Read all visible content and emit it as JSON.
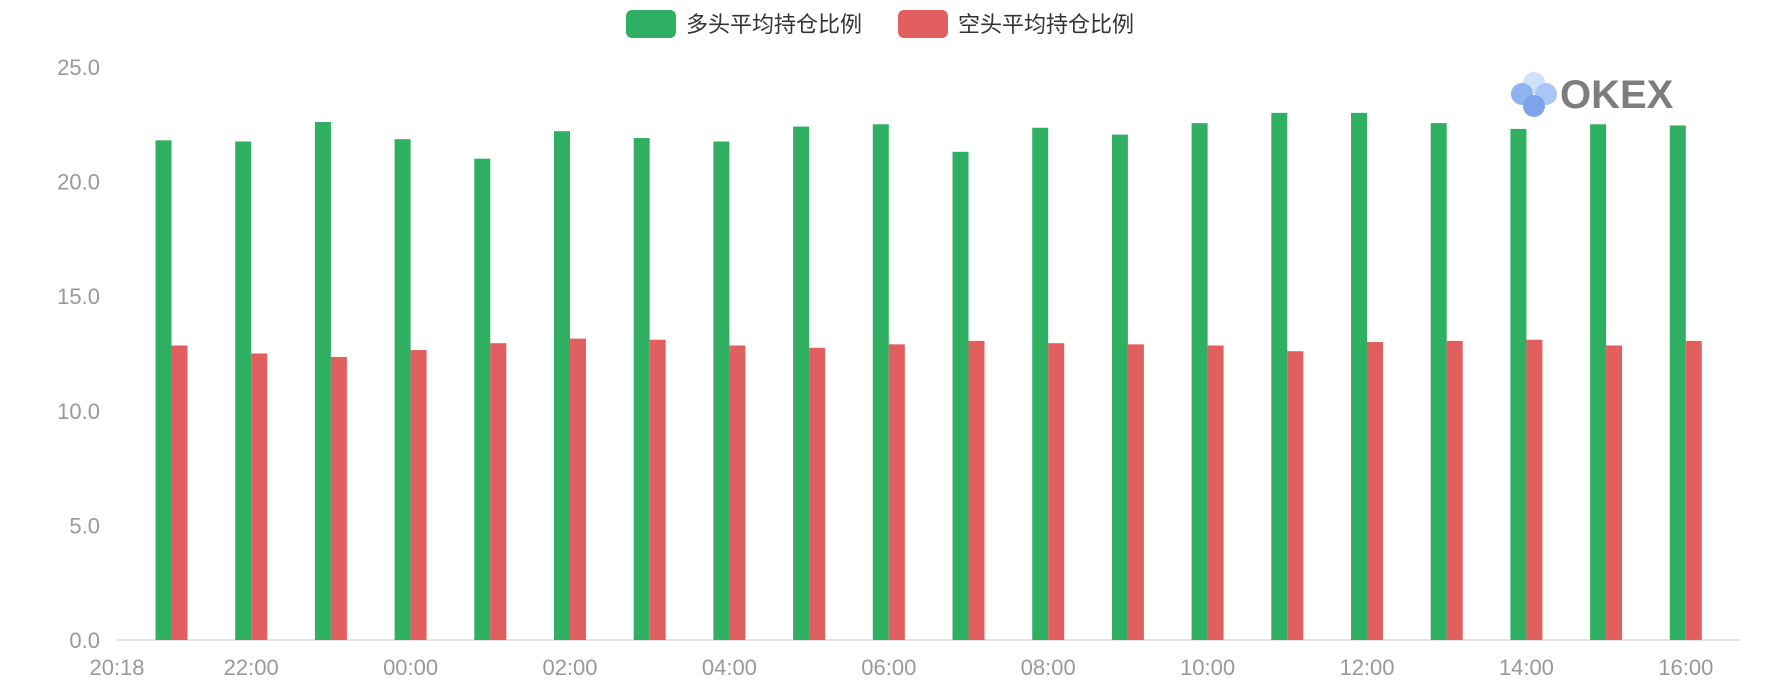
{
  "colors": {
    "long": "#2faf62",
    "short": "#e15f5f",
    "axis": "#dcdcdc",
    "tick_text": "#999999"
  },
  "legend": [
    {
      "label": "多头平均持仓比例",
      "color": "#2faf62"
    },
    {
      "label": "空头平均持仓比例",
      "color": "#e15f5f"
    }
  ],
  "watermark": {
    "text": "OKEX",
    "icon": "okex-logo-icon"
  },
  "chart_data": {
    "type": "bar",
    "title": "",
    "xlabel": "",
    "ylabel": "",
    "ylim": [
      0,
      25
    ],
    "y_ticks": [
      "0.0",
      "5.0",
      "10.0",
      "15.0",
      "20.0",
      "25.0"
    ],
    "x_tick_labels": [
      "20:18",
      "22:00",
      "00:00",
      "02:00",
      "04:00",
      "06:00",
      "08:00",
      "10:00",
      "12:00",
      "14:00",
      "16:00"
    ],
    "grid": false,
    "legend_position": "top-center",
    "series": [
      {
        "name": "多头平均持仓比例",
        "color": "#2faf62",
        "values": [
          21.8,
          21.75,
          22.6,
          21.85,
          21.0,
          22.2,
          21.9,
          21.75,
          22.4,
          22.5,
          21.3,
          22.35,
          22.05,
          22.55,
          23.0,
          23.0,
          22.55,
          22.3,
          22.5,
          22.45
        ]
      },
      {
        "name": "空头平均持仓比例",
        "color": "#e15f5f",
        "values": [
          12.85,
          12.5,
          12.35,
          12.65,
          12.95,
          13.15,
          13.1,
          12.85,
          12.75,
          12.9,
          13.05,
          12.95,
          12.9,
          12.85,
          12.6,
          13.0,
          13.05,
          13.1,
          12.85,
          13.05
        ]
      }
    ]
  }
}
